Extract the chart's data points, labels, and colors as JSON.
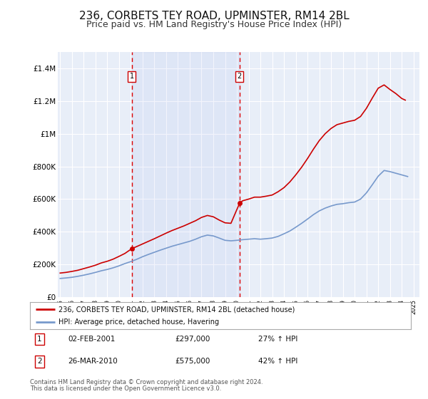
{
  "title": "236, CORBETS TEY ROAD, UPMINSTER, RM14 2BL",
  "subtitle": "Price paid vs. HM Land Registry's House Price Index (HPI)",
  "title_fontsize": 11,
  "subtitle_fontsize": 9,
  "ylabel_ticks": [
    "£0",
    "£200K",
    "£400K",
    "£600K",
    "£800K",
    "£1M",
    "£1.2M",
    "£1.4M"
  ],
  "ytick_values": [
    0,
    200000,
    400000,
    600000,
    800000,
    1000000,
    1200000,
    1400000
  ],
  "ylim": [
    0,
    1500000
  ],
  "xlim_start": 1994.8,
  "xlim_end": 2025.5,
  "background_color": "#e8eef8",
  "plot_bg": "#e8eef8",
  "grid_color": "#ffffff",
  "sale1_x": 2001.083,
  "sale1_y": 297000,
  "sale2_x": 2010.233,
  "sale2_y": 575000,
  "sale_color": "#cc0000",
  "hpi_color": "#7799cc",
  "legend_label_red": "236, CORBETS TEY ROAD, UPMINSTER, RM14 2BL (detached house)",
  "legend_label_blue": "HPI: Average price, detached house, Havering",
  "annotation1_label": "1",
  "annotation1_date": "02-FEB-2001",
  "annotation1_price": "£297,000",
  "annotation1_pct": "27% ↑ HPI",
  "annotation2_label": "2",
  "annotation2_date": "26-MAR-2010",
  "annotation2_price": "£575,000",
  "annotation2_pct": "42% ↑ HPI",
  "footer1": "Contains HM Land Registry data © Crown copyright and database right 2024.",
  "footer2": "This data is licensed under the Open Government Licence v3.0.",
  "dashed_line_color": "#dd0000"
}
